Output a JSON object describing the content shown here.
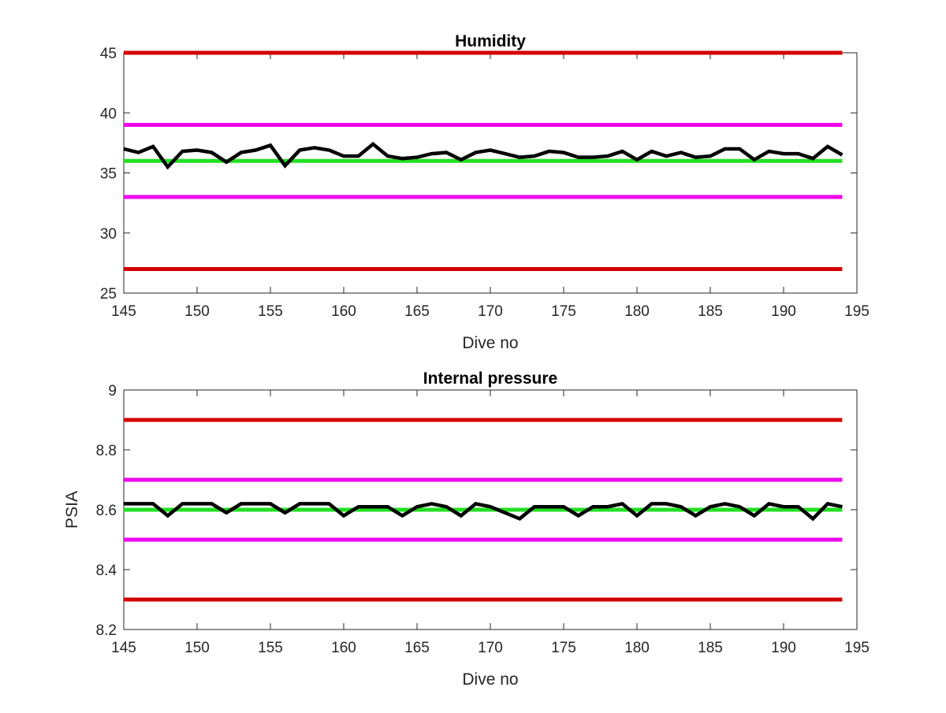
{
  "chart_data": [
    {
      "type": "line",
      "title": "Humidity",
      "xlabel": "Dive no",
      "ylabel": "",
      "xlim": [
        145,
        195
      ],
      "ylim": [
        25,
        45
      ],
      "xticks": [
        145,
        150,
        155,
        160,
        165,
        170,
        175,
        180,
        185,
        190,
        195
      ],
      "yticks": [
        25,
        30,
        35,
        40,
        45
      ],
      "grid": false,
      "legend": "none",
      "reference_lines": [
        {
          "y": 45,
          "color": "#d40000"
        },
        {
          "y": 39,
          "color": "#ee00ee"
        },
        {
          "y": 36,
          "color": "#22e022"
        },
        {
          "y": 33,
          "color": "#ee00ee"
        },
        {
          "y": 27,
          "color": "#d40000"
        }
      ],
      "series": [
        {
          "color": "#000000",
          "x": [
            145,
            146,
            147,
            148,
            149,
            150,
            151,
            152,
            153,
            154,
            155,
            156,
            157,
            158,
            159,
            160,
            161,
            162,
            163,
            164,
            165,
            166,
            167,
            168,
            169,
            170,
            171,
            172,
            173,
            174,
            175,
            176,
            177,
            178,
            179,
            180,
            181,
            182,
            183,
            184,
            185,
            186,
            187,
            188,
            189,
            190,
            191,
            192,
            193,
            194
          ],
          "y": [
            37.0,
            36.7,
            37.2,
            35.5,
            36.8,
            36.9,
            36.7,
            35.9,
            36.7,
            36.9,
            37.3,
            35.6,
            36.9,
            37.1,
            36.9,
            36.4,
            36.4,
            37.4,
            36.4,
            36.2,
            36.3,
            36.6,
            36.7,
            36.1,
            36.7,
            36.9,
            36.6,
            36.3,
            36.4,
            36.8,
            36.7,
            36.3,
            36.3,
            36.4,
            36.8,
            36.1,
            36.8,
            36.4,
            36.7,
            36.3,
            36.4,
            37.0,
            37.0,
            36.1,
            36.8,
            36.6,
            36.6,
            36.2,
            37.2,
            36.5
          ]
        }
      ]
    },
    {
      "type": "line",
      "title": "Internal pressure",
      "xlabel": "Dive no",
      "ylabel": "PSIA",
      "xlim": [
        145,
        195
      ],
      "ylim": [
        8.2,
        9
      ],
      "xticks": [
        145,
        150,
        155,
        160,
        165,
        170,
        175,
        180,
        185,
        190,
        195
      ],
      "yticks": [
        8.2,
        8.4,
        8.6,
        8.8,
        9
      ],
      "grid": false,
      "legend": "none",
      "reference_lines": [
        {
          "y": 8.9,
          "color": "#d40000"
        },
        {
          "y": 8.7,
          "color": "#ee00ee"
        },
        {
          "y": 8.6,
          "color": "#22e022"
        },
        {
          "y": 8.5,
          "color": "#ee00ee"
        },
        {
          "y": 8.3,
          "color": "#d40000"
        }
      ],
      "series": [
        {
          "color": "#000000",
          "x": [
            145,
            146,
            147,
            148,
            149,
            150,
            151,
            152,
            153,
            154,
            155,
            156,
            157,
            158,
            159,
            160,
            161,
            162,
            163,
            164,
            165,
            166,
            167,
            168,
            169,
            170,
            171,
            172,
            173,
            174,
            175,
            176,
            177,
            178,
            179,
            180,
            181,
            182,
            183,
            184,
            185,
            186,
            187,
            188,
            189,
            190,
            191,
            192,
            193,
            194
          ],
          "y": [
            8.62,
            8.62,
            8.62,
            8.58,
            8.62,
            8.62,
            8.62,
            8.59,
            8.62,
            8.62,
            8.62,
            8.59,
            8.62,
            8.62,
            8.62,
            8.58,
            8.61,
            8.61,
            8.61,
            8.58,
            8.61,
            8.62,
            8.61,
            8.58,
            8.62,
            8.61,
            8.59,
            8.57,
            8.61,
            8.61,
            8.61,
            8.58,
            8.61,
            8.61,
            8.62,
            8.58,
            8.62,
            8.62,
            8.61,
            8.58,
            8.61,
            8.62,
            8.61,
            8.58,
            8.62,
            8.61,
            8.61,
            8.57,
            8.62,
            8.61
          ]
        }
      ]
    }
  ]
}
